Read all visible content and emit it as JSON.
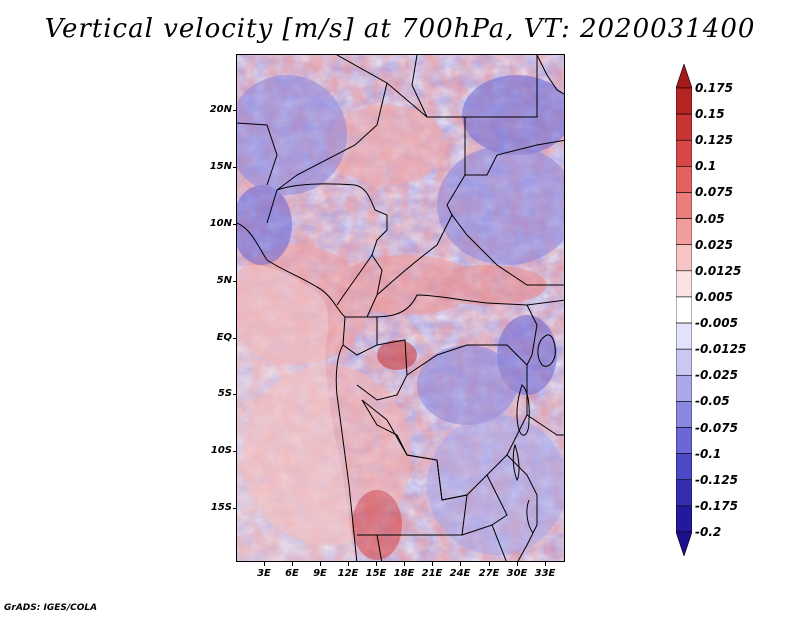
{
  "title": "Vertical velocity [m/s] at 700hPa, VT: 2020031400",
  "footer": "GrADS: IGES/COLA",
  "colors": {
    "positive_strong": "#a51b1b",
    "positive_weak": "#f6c4c4",
    "negative_weak": "#c9c8f2",
    "negative_strong": "#1e0f8f",
    "border_lines": "#000000"
  },
  "axes": {
    "lat_labels": [
      "20N",
      "15N",
      "10N",
      "5N",
      "EQ",
      "5S",
      "10S",
      "15S"
    ],
    "lon_labels": [
      "3E",
      "6E",
      "9E",
      "12E",
      "15E",
      "18E",
      "21E",
      "24E",
      "27E",
      "30E",
      "33E"
    ]
  },
  "colorbar": {
    "labels": [
      "0.175",
      "0.15",
      "0.125",
      "0.1",
      "0.075",
      "0.05",
      "0.025",
      "0.0125",
      "0.005",
      "-0.005",
      "-0.0125",
      "-0.025",
      "-0.05",
      "-0.075",
      "-0.1",
      "-0.125",
      "-0.175",
      "-0.2"
    ],
    "colors": [
      "#a51b1b",
      "#b72424",
      "#c93434",
      "#d84747",
      "#e26161",
      "#ec7d7d",
      "#f29d9d",
      "#f6c4c4",
      "#fbe3e3",
      "#ffffff",
      "#e2e2fa",
      "#c9c8f2",
      "#aaa8ea",
      "#8a87e0",
      "#6b67d6",
      "#4d48c6",
      "#352fb0",
      "#24199c",
      "#1e0f8f"
    ]
  }
}
